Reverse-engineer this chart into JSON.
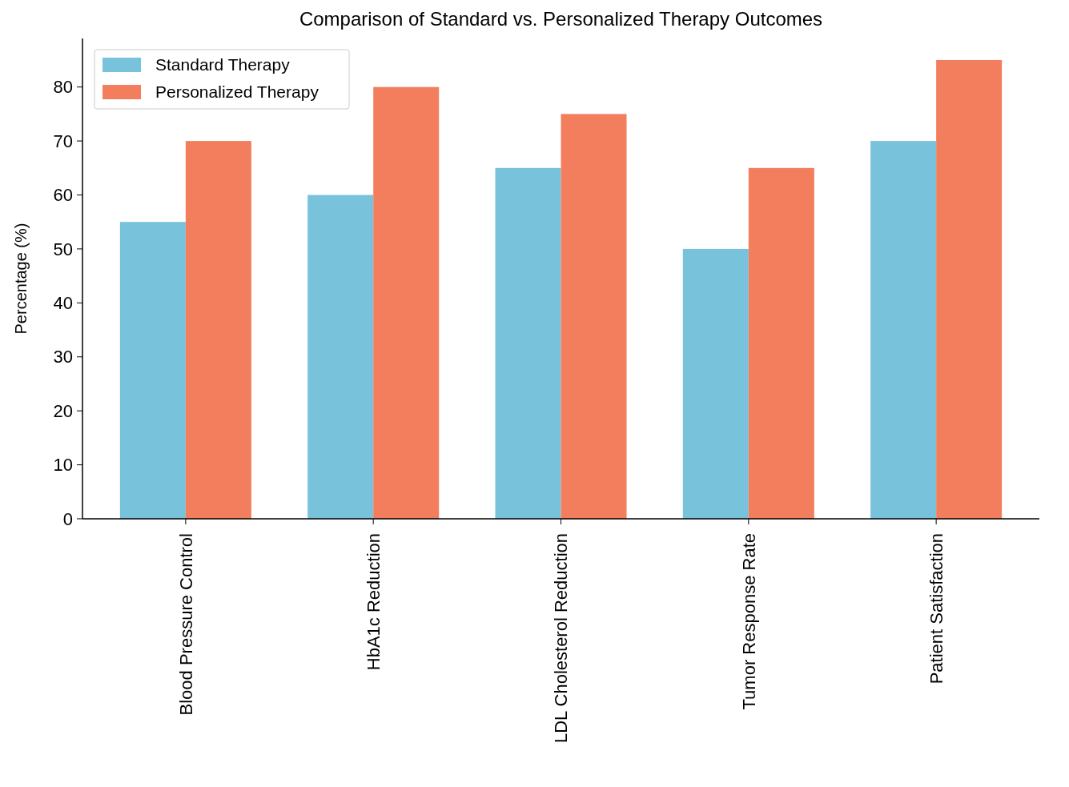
{
  "chart_data": {
    "type": "bar",
    "title": "Comparison of Standard vs. Personalized Therapy Outcomes",
    "ylabel": "Percentage (%)",
    "categories": [
      "Blood Pressure Control",
      "HbA1c Reduction",
      "LDL Cholesterol Reduction",
      "Tumor Response Rate",
      "Patient Satisfaction"
    ],
    "series": [
      {
        "name": "Standard Therapy",
        "color": "#78c2dc",
        "values": [
          55,
          60,
          65,
          50,
          70
        ]
      },
      {
        "name": "Personalized Therapy",
        "color": "#f27e5e",
        "values": [
          70,
          80,
          75,
          65,
          85
        ]
      }
    ],
    "ylim": [
      0,
      89
    ],
    "yticks": [
      0,
      10,
      20,
      30,
      40,
      50,
      60,
      70,
      80
    ],
    "grid": false,
    "legend": "top left"
  }
}
